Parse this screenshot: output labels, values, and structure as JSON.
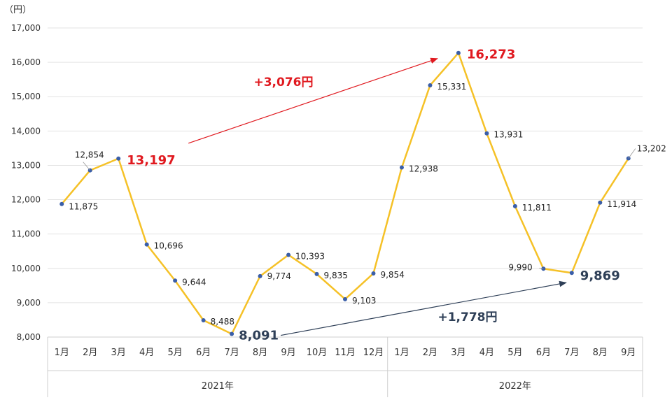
{
  "chart_data": {
    "type": "line",
    "unit_label": "（円）",
    "y_ticks": [
      "8,000",
      "9,000",
      "10,000",
      "11,000",
      "12,000",
      "13,000",
      "14,000",
      "15,000",
      "16,000",
      "17,000"
    ],
    "ylim": [
      8000,
      17000
    ],
    "grid": true,
    "categories": [
      "1月",
      "2月",
      "3月",
      "4月",
      "5月",
      "6月",
      "7月",
      "8月",
      "9月",
      "10月",
      "11月",
      "12月",
      "1月",
      "2月",
      "3月",
      "4月",
      "5月",
      "6月",
      "7月",
      "8月",
      "9月"
    ],
    "years": [
      {
        "label": "2021年",
        "start": 0,
        "end": 11
      },
      {
        "label": "2022年",
        "start": 12,
        "end": 20
      }
    ],
    "series": [
      {
        "values": [
          11875,
          12854,
          13197,
          10696,
          9644,
          8488,
          8091,
          9774,
          10393,
          9835,
          9103,
          9854,
          12938,
          15331,
          16273,
          13931,
          11811,
          9990,
          9869,
          11914,
          13202
        ],
        "labels": [
          "11,875",
          "12,854",
          "13,197",
          "10,696",
          "9,644",
          "8,488",
          "8,091",
          "9,774",
          "10,393",
          "9,835",
          "9,103",
          "9,854",
          "12,938",
          "15,331",
          "16,273",
          "13,931",
          "11,811",
          "9,990",
          "9,869",
          "11,914",
          "13,202"
        ]
      }
    ],
    "highlights": [
      {
        "index": 2,
        "color": "#e0191f"
      },
      {
        "index": 14,
        "color": "#e0191f"
      },
      {
        "index": 6,
        "color": "#2e3f57"
      },
      {
        "index": 18,
        "color": "#2e3f57"
      }
    ],
    "annotations": [
      {
        "text": "+3,076円",
        "from": 2,
        "to": 14,
        "color": "#e0191f"
      },
      {
        "text": "+1,778円",
        "from": 6,
        "to": 18,
        "color": "#2e3f57"
      }
    ],
    "colors": {
      "line": "#f5c127",
      "marker": "#3a5ea8",
      "grid": "#e3e3e3",
      "axis": "#cfcfcf"
    }
  }
}
